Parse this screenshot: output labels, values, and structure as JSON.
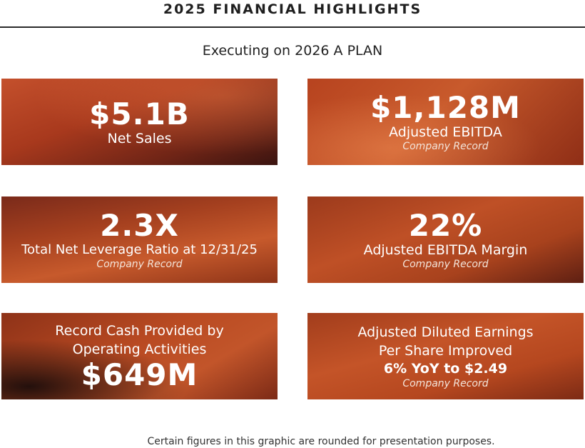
{
  "header": {
    "title": "2025 FINANCIAL HIGHLIGHTS",
    "subtitle": "Executing on 2026 A PLAN"
  },
  "tiles": [
    {
      "big": "$5.1B",
      "label": "Net Sales"
    },
    {
      "big": "$1,128M",
      "label": "Adjusted EBITDA",
      "note": "Company Record"
    },
    {
      "big": "2.3X",
      "label": "Total Net Leverage Ratio at 12/31/25",
      "note": "Company Record"
    },
    {
      "big": "22%",
      "label": "Adjusted EBITDA Margin",
      "note": "Company Record"
    },
    {
      "line1": "Record Cash Provided by",
      "line2": "Operating Activities",
      "big": "$649M"
    },
    {
      "line1": "Adjusted Diluted Earnings",
      "line2": "Per Share Improved",
      "bold": "6% YoY to $2.49",
      "note": "Company Record"
    }
  ],
  "footer": {
    "note": "Certain figures in this graphic are rounded for presentation purposes."
  }
}
